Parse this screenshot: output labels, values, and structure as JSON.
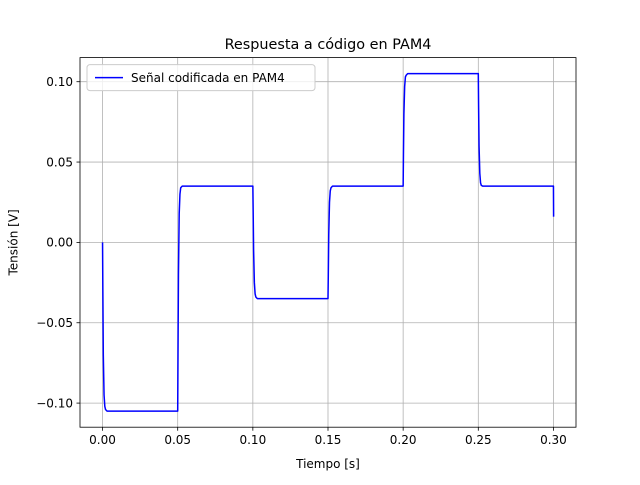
{
  "chart_data": {
    "type": "line",
    "title": "Respuesta a código en PAM4",
    "xlabel": "Tiempo [s]",
    "ylabel": "Tensión [V]",
    "xlim": [
      -0.015,
      0.315
    ],
    "ylim": [
      -0.115,
      0.115
    ],
    "x_ticks": [
      0.0,
      0.05,
      0.1,
      0.15,
      0.2,
      0.25,
      0.3
    ],
    "x_tick_labels": [
      "0.00",
      "0.05",
      "0.10",
      "0.15",
      "0.20",
      "0.25",
      "0.30"
    ],
    "y_ticks": [
      -0.1,
      -0.05,
      0.0,
      0.05,
      0.1
    ],
    "y_tick_labels": [
      "−0.10",
      "−0.05",
      "0.00",
      "0.05",
      "0.10"
    ],
    "grid": true,
    "legend_position": "top-left",
    "series": [
      {
        "name": "Señal codificada en PAM4",
        "color": "#0000ff",
        "x": [
          0.0,
          0.0002,
          0.0005,
          0.001,
          0.0015,
          0.002,
          0.003,
          0.05,
          0.0502,
          0.0505,
          0.051,
          0.0515,
          0.052,
          0.053,
          0.1,
          0.1002,
          0.1005,
          0.101,
          0.1015,
          0.102,
          0.103,
          0.15,
          0.1502,
          0.1505,
          0.151,
          0.1515,
          0.152,
          0.153,
          0.2,
          0.2002,
          0.2005,
          0.201,
          0.2015,
          0.202,
          0.203,
          0.25,
          0.2502,
          0.2505,
          0.251,
          0.2515,
          0.252,
          0.253,
          0.3,
          0.3001
        ],
        "y": [
          0.0,
          -0.03,
          -0.07,
          -0.095,
          -0.102,
          -0.104,
          -0.105,
          -0.105,
          -0.07,
          -0.02,
          0.018,
          0.03,
          0.034,
          0.035,
          0.035,
          0.02,
          -0.005,
          -0.025,
          -0.032,
          -0.034,
          -0.035,
          -0.035,
          -0.02,
          0.005,
          0.025,
          0.032,
          0.034,
          0.035,
          0.035,
          0.055,
          0.08,
          0.097,
          0.103,
          0.104,
          0.105,
          0.105,
          0.085,
          0.06,
          0.043,
          0.037,
          0.0355,
          0.035,
          0.035,
          0.016
        ]
      }
    ]
  }
}
